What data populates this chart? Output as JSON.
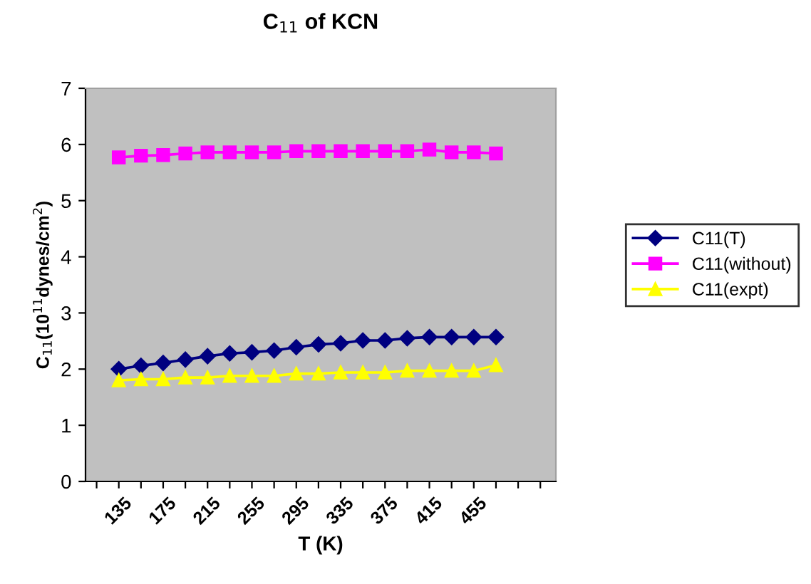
{
  "chart_data": {
    "type": "line",
    "title": "C$_{11}$ of KCN",
    "xlabel": "T (K)",
    "ylabel": "C$_{11}$(10$^{11}$dynes/cm$^{2}$)",
    "x": [
      135,
      155,
      175,
      195,
      215,
      235,
      255,
      275,
      295,
      315,
      335,
      355,
      375,
      395,
      415,
      435,
      455,
      475
    ],
    "xlim": [
      105,
      529
    ],
    "xticks": [
      {
        "value": 115,
        "label": null
      },
      135,
      {
        "value": 155,
        "label": null
      },
      175,
      {
        "value": 195,
        "label": null
      },
      215,
      {
        "value": 235,
        "label": null
      },
      255,
      {
        "value": 275,
        "label": null
      },
      295,
      {
        "value": 315,
        "label": null
      },
      335,
      {
        "value": 355,
        "label": null
      },
      375,
      {
        "value": 395,
        "label": null
      },
      415,
      {
        "value": 435,
        "label": null
      },
      455,
      {
        "value": 475,
        "label": null
      },
      {
        "value": 495,
        "label": null
      },
      {
        "value": 515,
        "label": null
      }
    ],
    "ylim": [
      0,
      7
    ],
    "yticks": [
      0,
      1,
      2,
      3,
      4,
      5,
      6,
      7
    ],
    "grid": false,
    "legend": "right",
    "series": [
      {
        "name": "C11(T)",
        "color": "#000080",
        "marker": "diamond",
        "values": [
          2.0,
          2.06,
          2.11,
          2.17,
          2.23,
          2.28,
          2.3,
          2.33,
          2.39,
          2.44,
          2.46,
          2.51,
          2.51,
          2.55,
          2.57,
          2.57,
          2.57,
          2.57
        ]
      },
      {
        "name": "C11(without)",
        "color": "#ff00ff",
        "marker": "square",
        "values": [
          5.77,
          5.8,
          5.81,
          5.84,
          5.86,
          5.86,
          5.86,
          5.86,
          5.88,
          5.88,
          5.88,
          5.88,
          5.88,
          5.88,
          5.91,
          5.86,
          5.86,
          5.84
        ]
      },
      {
        "name": "C11(expt)",
        "color": "#ffff00",
        "marker": "triangle",
        "values": [
          1.8,
          1.82,
          1.82,
          1.85,
          1.85,
          1.88,
          1.88,
          1.88,
          1.92,
          1.92,
          1.94,
          1.94,
          1.94,
          1.97,
          1.97,
          1.97,
          1.97,
          2.07
        ]
      }
    ]
  }
}
